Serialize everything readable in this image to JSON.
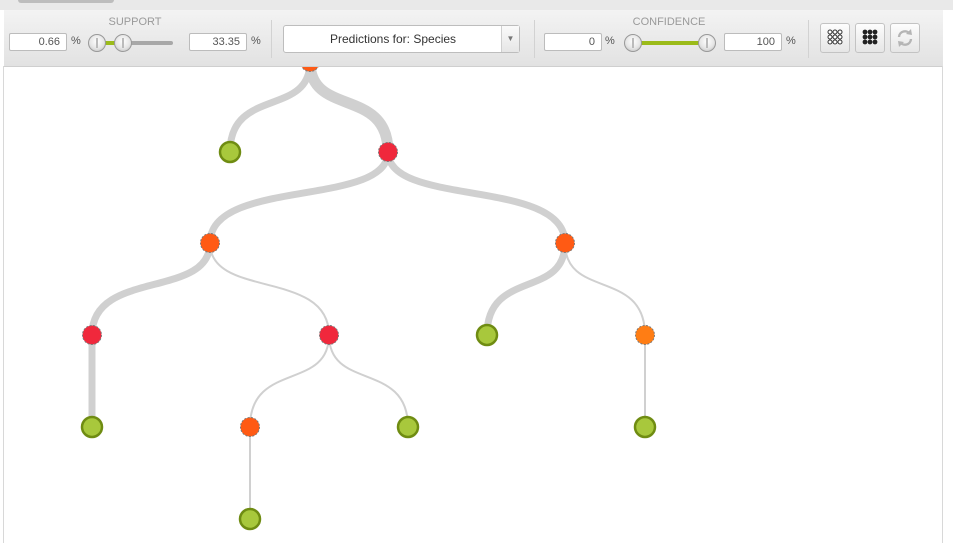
{
  "support": {
    "title": "SUPPORT",
    "min_value": "0.66",
    "max_value": "33.35",
    "unit": "%"
  },
  "prediction_select": {
    "label": "Predictions for: Species"
  },
  "confidence": {
    "title": "CONFIDENCE",
    "min_value": "0",
    "max_value": "100",
    "unit": "%"
  },
  "toolbar_buttons": {
    "view_a": "outline-grid-icon",
    "view_b": "filled-grid-icon",
    "reset": "refresh-icon"
  },
  "colors": {
    "accent_green": "#9bbb1a",
    "leaf_fill": "#a8c83c",
    "leaf_stroke": "#6f8c12",
    "split_red": "#f0283c",
    "split_orange": "#ff5a14",
    "split_amber": "#ff7d14",
    "edge": "#d0d0d0"
  },
  "tree": {
    "nodes": [
      {
        "id": "root",
        "kind": "split",
        "color": "orange"
      },
      {
        "id": "l1",
        "kind": "leaf"
      },
      {
        "id": "s1",
        "kind": "split",
        "color": "red"
      },
      {
        "id": "s2",
        "kind": "split",
        "color": "orange"
      },
      {
        "id": "s3",
        "kind": "split",
        "color": "orange"
      },
      {
        "id": "s4",
        "kind": "split",
        "color": "red"
      },
      {
        "id": "s5",
        "kind": "split",
        "color": "red"
      },
      {
        "id": "l2",
        "kind": "leaf"
      },
      {
        "id": "s6",
        "kind": "split",
        "color": "amber"
      },
      {
        "id": "l3",
        "kind": "leaf"
      },
      {
        "id": "s7",
        "kind": "split",
        "color": "orange"
      },
      {
        "id": "l4",
        "kind": "leaf"
      },
      {
        "id": "l5",
        "kind": "leaf"
      },
      {
        "id": "l6",
        "kind": "leaf"
      }
    ],
    "edges": [
      {
        "from": "root",
        "to": "l1",
        "weight": "medium"
      },
      {
        "from": "root",
        "to": "s1",
        "weight": "heavy"
      },
      {
        "from": "s1",
        "to": "s2",
        "weight": "medium"
      },
      {
        "from": "s1",
        "to": "s3",
        "weight": "medium"
      },
      {
        "from": "s2",
        "to": "s4",
        "weight": "medium"
      },
      {
        "from": "s2",
        "to": "s5",
        "weight": "light"
      },
      {
        "from": "s3",
        "to": "l2",
        "weight": "medium"
      },
      {
        "from": "s3",
        "to": "s6",
        "weight": "light"
      },
      {
        "from": "s4",
        "to": "l3",
        "weight": "medium"
      },
      {
        "from": "s5",
        "to": "s7",
        "weight": "light"
      },
      {
        "from": "s5",
        "to": "l4",
        "weight": "light"
      },
      {
        "from": "s6",
        "to": "l5",
        "weight": "light"
      },
      {
        "from": "s7",
        "to": "l6",
        "weight": "light"
      }
    ]
  }
}
